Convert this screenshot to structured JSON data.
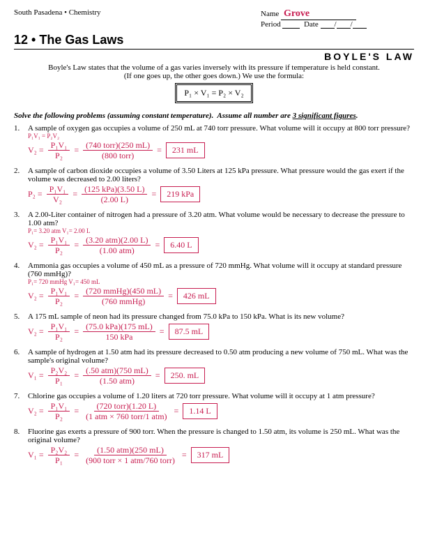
{
  "header": {
    "course": "South Pasadena • Chemistry",
    "name_label": "Name",
    "name_value": "Grove",
    "period_label": "Period",
    "date_label": "Date"
  },
  "chapter": "12 • The Gas Laws",
  "law_title": "BOYLE'S LAW",
  "intro_line1": "Boyle's Law states that the volume of a gas varies inversely with its pressure if temperature is held constant.",
  "intro_line2": "(If one goes up, the other goes down.) We use the formula:",
  "formula": "P₁ × V₁ = P₂ × V₂",
  "instruction": "Solve the following problems (assuming constant temperature).  Assume all number are 3 significant figures.",
  "problems": [
    {
      "num": "1.",
      "text": "A sample of oxygen gas occupies a volume of 250 mL at 740 torr pressure. What volume will it occupy at 800 torr pressure?",
      "work_prefix": "V₂ =",
      "frac1_num": "P₁V₁",
      "frac1_den": "P₂",
      "frac2_num": "(740 torr)(250 mL)",
      "frac2_den": "(800 torr)",
      "answer": "231 mL",
      "note": "P₁V₁ = P₂V₂"
    },
    {
      "num": "2.",
      "text": "A sample of carbon dioxide occupies a volume of 3.50 Liters at 125 kPa pressure.  What pressure would the gas exert if the volume was decreased to 2.00 liters?",
      "work_prefix": "P₂ =",
      "frac1_num": "P₁V₁",
      "frac1_den": "V₂",
      "frac2_num": "(125 kPa)(3.50 L)",
      "frac2_den": "(2.00 L)",
      "answer": "219 kPa"
    },
    {
      "num": "3.",
      "text": "A 2.00-Liter container of nitrogen had a pressure of 3.20 atm. What volume would be necessary to decrease the pressure to 1.00 atm?",
      "work_prefix": "V₂ =",
      "frac1_num": "P₁V₁",
      "frac1_den": "P₂",
      "frac2_num": "(3.20 atm)(2.00 L)",
      "frac2_den": "(1.00 atm)",
      "answer": "6.40 L",
      "note": "P₁= 3.20 atm  V₁= 2.00 L"
    },
    {
      "num": "4.",
      "text": "Ammonia gas occupies a volume of 450 mL as a pressure of 720 mmHg.  What volume will it occupy at standard pressure (760 mmHg)?",
      "work_prefix": "V₂ =",
      "frac1_num": "P₁V₁",
      "frac1_den": "P₂",
      "frac2_num": "(720 mmHg)(450 mL)",
      "frac2_den": "(760 mmHg)",
      "answer": "426 mL",
      "note": "P₁= 720 mmHg  V₁= 450 mL"
    },
    {
      "num": "5.",
      "text": "A 175 mL sample of neon had its pressure changed from 75.0 kPa to 150 kPa.  What is its new volume?",
      "work_prefix": "V₂ =",
      "frac1_num": "P₁V₁",
      "frac1_den": "P₂",
      "frac2_num": "(75.0 kPa)(175 mL)",
      "frac2_den": "150 kPa",
      "answer": "87.5 mL"
    },
    {
      "num": "6.",
      "text": "A sample of hydrogen at 1.50 atm had its pressure decreased to 0.50 atm producing a new volume of 750 mL.  What was the sample's original volume?",
      "work_prefix": "V₁ =",
      "frac1_num": "P₂V₂",
      "frac1_den": "P₁",
      "frac2_num": "(.50 atm)(750 mL)",
      "frac2_den": "(1.50 atm)",
      "answer": "250. mL"
    },
    {
      "num": "7.",
      "text": "Chlorine gas occupies a volume of 1.20 liters at 720 torr pressure.  What volume will it occupy at 1 atm pressure?",
      "work_prefix": "V₂ =",
      "frac1_num": "P₁V₁",
      "frac1_den": "P₂",
      "frac2_num": "(720 torr)(1.20 L)",
      "frac2_den": "(1 atm × 760 torr/1 atm)",
      "answer": "1.14 L"
    },
    {
      "num": "8.",
      "text": "Fluorine gas exerts a pressure of 900 torr.  When the pressure is changed to 1.50 atm, its volume is 250 mL.  What was the original volume?",
      "work_prefix": "V₁ =",
      "frac1_num": "P₂V₂",
      "frac1_den": "P₁",
      "frac2_num": "(1.50 atm)(250 mL)",
      "frac2_den": "(900 torr × 1 atm/760 torr)",
      "answer": "317 mL"
    }
  ]
}
